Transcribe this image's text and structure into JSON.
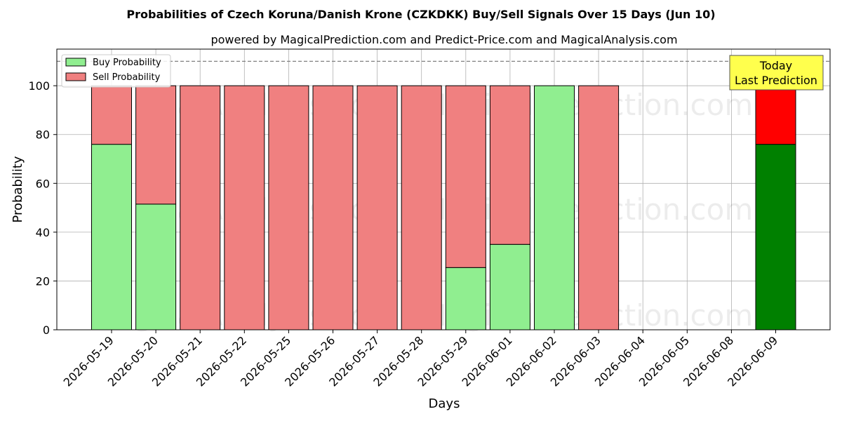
{
  "chart_data": {
    "type": "bar",
    "title": "Probabilities of Czech Koruna/Danish Krone (CZKDKK) Buy/Sell Signals Over 15 Days (Jun 10)",
    "subtitle": "powered by MagicalPrediction.com and Predict-Price.com and MagicalAnalysis.com",
    "xlabel": "Days",
    "ylabel": "Probability",
    "ylim": [
      0,
      115
    ],
    "yticks": [
      0,
      20,
      40,
      60,
      80,
      100
    ],
    "grid": true,
    "legend_position": "top-left",
    "categories": [
      "2026-05-19",
      "2026-05-20",
      "2026-05-21",
      "2026-05-22",
      "2026-05-25",
      "2026-05-26",
      "2026-05-27",
      "2026-05-28",
      "2026-05-29",
      "2026-06-01",
      "2026-06-02",
      "2026-06-03",
      "2026-06-04",
      "2026-06-05",
      "2026-06-08",
      "2026-06-09"
    ],
    "series": [
      {
        "name": "Buy Probability",
        "color": "#90ee90",
        "values": [
          76,
          51.5,
          0,
          0,
          0,
          0,
          0,
          0,
          25.5,
          35,
          100,
          0,
          null,
          null,
          null,
          76
        ]
      },
      {
        "name": "Sell Probability",
        "color": "#f08080",
        "values": [
          24,
          48.5,
          100,
          100,
          100,
          100,
          100,
          100,
          74.5,
          65,
          0,
          100,
          null,
          null,
          null,
          24
        ]
      }
    ],
    "highlight": {
      "category": "2026-06-09",
      "buy_color": "#008000",
      "sell_color": "#ff0000"
    },
    "reference_line": {
      "y": 110,
      "style": "dashed",
      "color": "#808080"
    },
    "annotation": {
      "text_line1": "Today",
      "text_line2": "Last Prediction",
      "background": "#ffff4d"
    },
    "watermarks": [
      "MagicalAnalysis.com",
      "MagicalPrediction.com"
    ]
  }
}
